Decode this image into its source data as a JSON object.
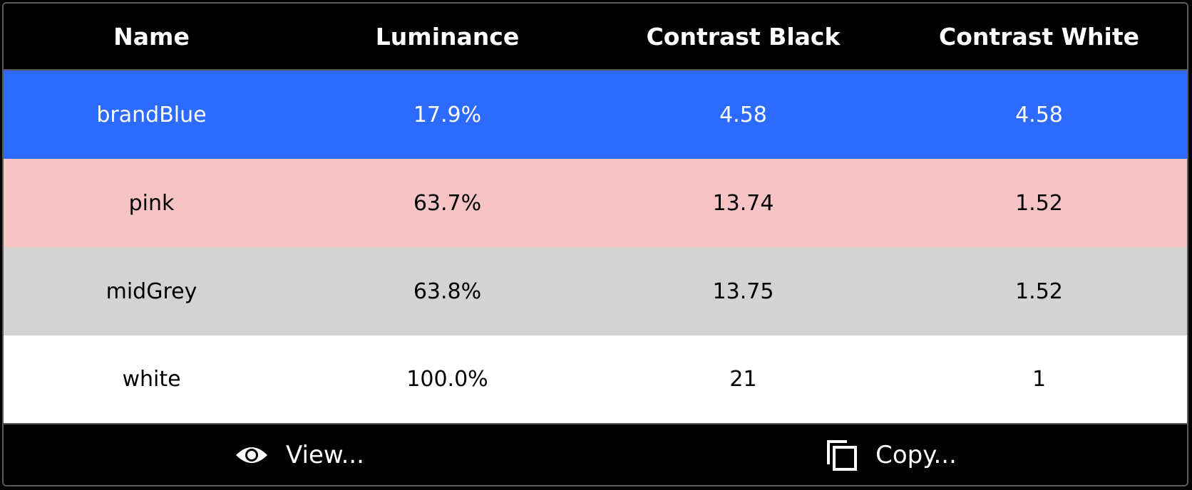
{
  "table": {
    "headers": [
      "Name",
      "Luminance",
      "Contrast Black",
      "Contrast White"
    ],
    "rows": [
      {
        "name": "brandBlue",
        "luminance": "17.9%",
        "contrast_black": "4.58",
        "contrast_white": "4.58",
        "bg": "#2d6aff",
        "fg": "#ffffff"
      },
      {
        "name": "pink",
        "luminance": "63.7%",
        "contrast_black": "13.74",
        "contrast_white": "1.52",
        "bg": "#f7c4c5",
        "fg": "#000000"
      },
      {
        "name": "midGrey",
        "luminance": "63.8%",
        "contrast_black": "13.75",
        "contrast_white": "1.52",
        "bg": "#d3d3d3",
        "fg": "#000000"
      },
      {
        "name": "white",
        "luminance": "100.0%",
        "contrast_black": "21",
        "contrast_white": "1",
        "bg": "#ffffff",
        "fg": "#000000"
      }
    ]
  },
  "footer": {
    "view": {
      "label": "View...",
      "icon": "eye-icon"
    },
    "copy": {
      "label": "Copy...",
      "icon": "copy-icon"
    }
  }
}
